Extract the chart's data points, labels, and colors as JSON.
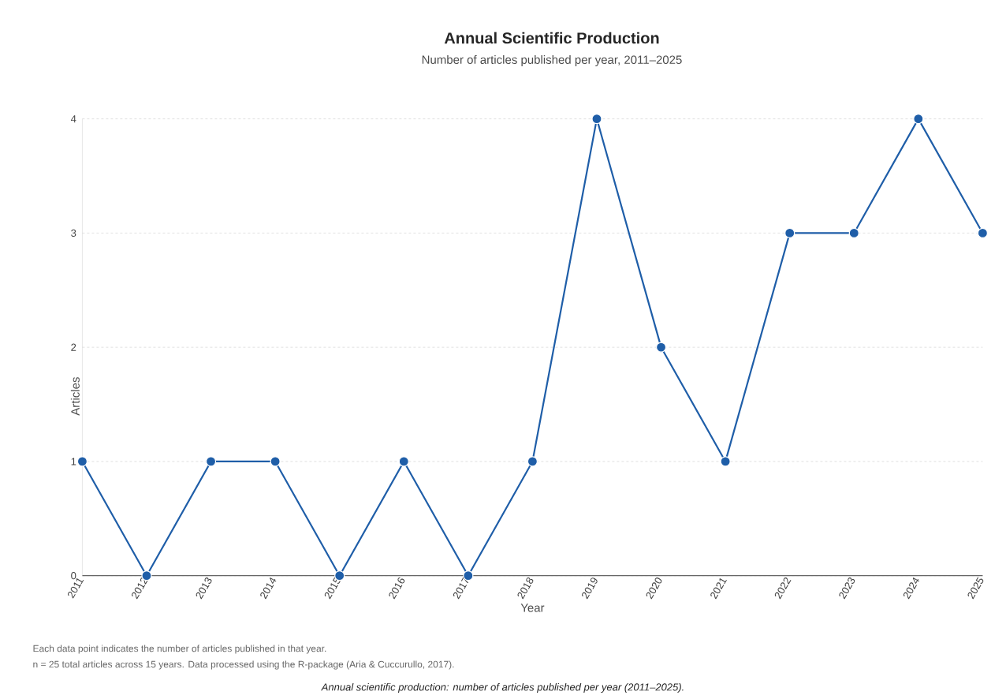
{
  "chart_data": {
    "type": "line",
    "title": "Annual Scientific Production",
    "subtitle": "Number of articles published per year, 2011–2025",
    "xlabel": "Year",
    "ylabel": "Articles",
    "categories": [
      "2011",
      "2012",
      "2013",
      "2014",
      "2015",
      "2016",
      "2017",
      "2018",
      "2019",
      "2020",
      "2021",
      "2022",
      "2023",
      "2024",
      "2025"
    ],
    "series": [
      {
        "color": "#1f5ea8",
        "values": [
          1,
          0,
          1,
          1,
          0,
          1,
          0,
          1,
          4,
          2,
          1,
          3,
          3,
          4,
          3
        ]
      }
    ],
    "ylim": [
      0,
      4
    ],
    "yticks": [
      0,
      1,
      2,
      3,
      4
    ],
    "grid": "y",
    "marker": "circle",
    "line_style": "solid",
    "annotations": [
      "Each data point indicates the number of articles published in that year.",
      "n = 25 total articles across 15 years. Data processed using the R-package (Aria & Cuccurullo, 2017).",
      "*Annual scientific production: number of articles published per year (2011–2025).*"
    ]
  }
}
